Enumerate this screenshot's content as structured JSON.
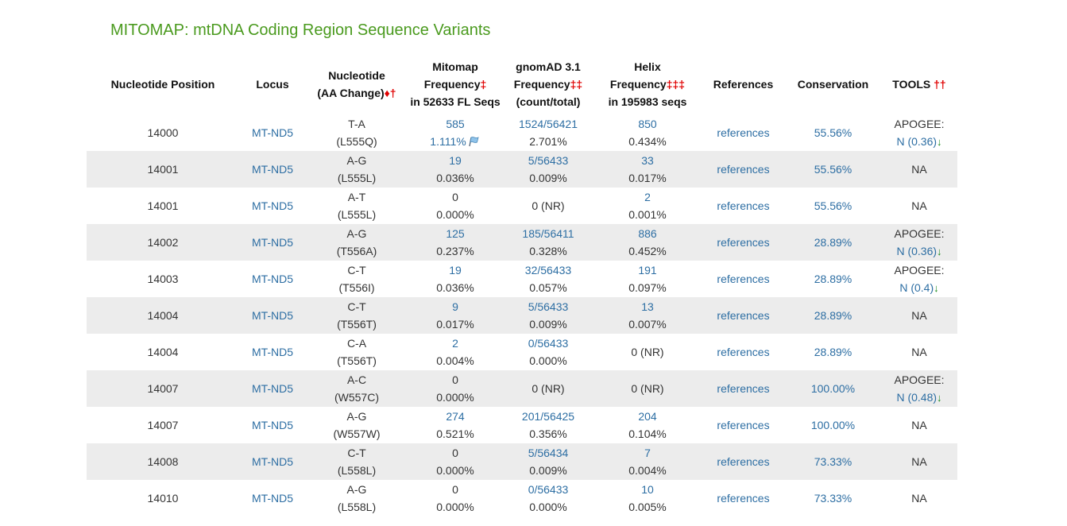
{
  "page": {
    "title": "MITOMAP: mtDNA Coding Region Sequence Variants"
  },
  "header": {
    "position": "Nucleotide Position",
    "locus": "Locus",
    "nucleotide_line1": "Nucleotide",
    "nucleotide_line2": "(AA Change)",
    "nucleotide_sym": "♦†",
    "mitomap_line1": "Mitomap",
    "mitomap_line2": "Frequency",
    "mitomap_sym": "‡",
    "mitomap_line3": "in 52633 FL Seqs",
    "gnomad_line1": "gnomAD 3.1",
    "gnomad_line2": "Frequency",
    "gnomad_sym": "‡‡",
    "gnomad_line3": "(count/total)",
    "helix_line1": "Helix",
    "helix_line2": "Frequency",
    "helix_sym": "‡‡‡",
    "helix_line3": "in 195983 seqs",
    "references": "References",
    "conservation": "Conservation",
    "tools": "TOOLS",
    "tools_sym": "††"
  },
  "colors": {
    "title": "#4a9a1e",
    "link": "#2d6ea3",
    "symbol": "#e00000",
    "arrow": "#1c8a1c",
    "alt_row": "#ececec"
  },
  "rows": [
    {
      "pos": "14000",
      "locus": "MT-ND5",
      "nt": "T-A",
      "aa": "(L555Q)",
      "mito_count": "585",
      "mito_count_link": true,
      "mito_pct": "1.111%",
      "mito_flag": true,
      "gnomad": "1524/56421",
      "gnomad_link": true,
      "gnomad_pct": "2.701%",
      "helix": "850",
      "helix_link": true,
      "helix_pct": "0.434%",
      "refs": "references",
      "cons": "55.56%",
      "tool_label": "APOGEE:",
      "tool_value": "N (0.36)",
      "tool_arrow": true
    },
    {
      "pos": "14001",
      "locus": "MT-ND5",
      "nt": "A-G",
      "aa": "(L555L)",
      "mito_count": "19",
      "mito_count_link": true,
      "mito_pct": "0.036%",
      "mito_flag": false,
      "gnomad": "5/56433",
      "gnomad_link": true,
      "gnomad_pct": "0.009%",
      "helix": "33",
      "helix_link": true,
      "helix_pct": "0.017%",
      "refs": "references",
      "cons": "55.56%",
      "tool_label": "",
      "tool_value": "NA",
      "tool_arrow": false
    },
    {
      "pos": "14001",
      "locus": "MT-ND5",
      "nt": "A-T",
      "aa": "(L555L)",
      "mito_count": "0",
      "mito_count_link": false,
      "mito_pct": "0.000%",
      "mito_flag": false,
      "gnomad": "0 (NR)",
      "gnomad_link": false,
      "gnomad_pct": "",
      "helix": "2",
      "helix_link": true,
      "helix_pct": "0.001%",
      "refs": "references",
      "cons": "55.56%",
      "tool_label": "",
      "tool_value": "NA",
      "tool_arrow": false
    },
    {
      "pos": "14002",
      "locus": "MT-ND5",
      "nt": "A-G",
      "aa": "(T556A)",
      "mito_count": "125",
      "mito_count_link": true,
      "mito_pct": "0.237%",
      "mito_flag": false,
      "gnomad": "185/56411",
      "gnomad_link": true,
      "gnomad_pct": "0.328%",
      "helix": "886",
      "helix_link": true,
      "helix_pct": "0.452%",
      "refs": "references",
      "cons": "28.89%",
      "tool_label": "APOGEE:",
      "tool_value": "N (0.36)",
      "tool_arrow": true
    },
    {
      "pos": "14003",
      "locus": "MT-ND5",
      "nt": "C-T",
      "aa": "(T556I)",
      "mito_count": "19",
      "mito_count_link": true,
      "mito_pct": "0.036%",
      "mito_flag": false,
      "gnomad": "32/56433",
      "gnomad_link": true,
      "gnomad_pct": "0.057%",
      "helix": "191",
      "helix_link": true,
      "helix_pct": "0.097%",
      "refs": "references",
      "cons": "28.89%",
      "tool_label": "APOGEE:",
      "tool_value": "N (0.4)",
      "tool_arrow": true
    },
    {
      "pos": "14004",
      "locus": "MT-ND5",
      "nt": "C-T",
      "aa": "(T556T)",
      "mito_count": "9",
      "mito_count_link": true,
      "mito_pct": "0.017%",
      "mito_flag": false,
      "gnomad": "5/56433",
      "gnomad_link": true,
      "gnomad_pct": "0.009%",
      "helix": "13",
      "helix_link": true,
      "helix_pct": "0.007%",
      "refs": "references",
      "cons": "28.89%",
      "tool_label": "",
      "tool_value": "NA",
      "tool_arrow": false
    },
    {
      "pos": "14004",
      "locus": "MT-ND5",
      "nt": "C-A",
      "aa": "(T556T)",
      "mito_count": "2",
      "mito_count_link": true,
      "mito_pct": "0.004%",
      "mito_flag": false,
      "gnomad": "0/56433",
      "gnomad_link": true,
      "gnomad_pct": "0.000%",
      "helix": "0 (NR)",
      "helix_link": false,
      "helix_pct": "",
      "refs": "references",
      "cons": "28.89%",
      "tool_label": "",
      "tool_value": "NA",
      "tool_arrow": false
    },
    {
      "pos": "14007",
      "locus": "MT-ND5",
      "nt": "A-C",
      "aa": "(W557C)",
      "mito_count": "0",
      "mito_count_link": false,
      "mito_pct": "0.000%",
      "mito_flag": false,
      "gnomad": "0 (NR)",
      "gnomad_link": false,
      "gnomad_pct": "",
      "helix": "0 (NR)",
      "helix_link": false,
      "helix_pct": "",
      "refs": "references",
      "cons": "100.00%",
      "tool_label": "APOGEE:",
      "tool_value": "N (0.48)",
      "tool_arrow": true
    },
    {
      "pos": "14007",
      "locus": "MT-ND5",
      "nt": "A-G",
      "aa": "(W557W)",
      "mito_count": "274",
      "mito_count_link": true,
      "mito_pct": "0.521%",
      "mito_flag": false,
      "gnomad": "201/56425",
      "gnomad_link": true,
      "gnomad_pct": "0.356%",
      "helix": "204",
      "helix_link": true,
      "helix_pct": "0.104%",
      "refs": "references",
      "cons": "100.00%",
      "tool_label": "",
      "tool_value": "NA",
      "tool_arrow": false
    },
    {
      "pos": "14008",
      "locus": "MT-ND5",
      "nt": "C-T",
      "aa": "(L558L)",
      "mito_count": "0",
      "mito_count_link": false,
      "mito_pct": "0.000%",
      "mito_flag": false,
      "gnomad": "5/56434",
      "gnomad_link": true,
      "gnomad_pct": "0.009%",
      "helix": "7",
      "helix_link": true,
      "helix_pct": "0.004%",
      "refs": "references",
      "cons": "73.33%",
      "tool_label": "",
      "tool_value": "NA",
      "tool_arrow": false
    },
    {
      "pos": "14010",
      "locus": "MT-ND5",
      "nt": "A-G",
      "aa": "(L558L)",
      "mito_count": "0",
      "mito_count_link": false,
      "mito_pct": "0.000%",
      "mito_flag": false,
      "gnomad": "0/56433",
      "gnomad_link": true,
      "gnomad_pct": "0.000%",
      "helix": "10",
      "helix_link": true,
      "helix_pct": "0.005%",
      "refs": "references",
      "cons": "73.33%",
      "tool_label": "",
      "tool_value": "NA",
      "tool_arrow": false
    }
  ]
}
